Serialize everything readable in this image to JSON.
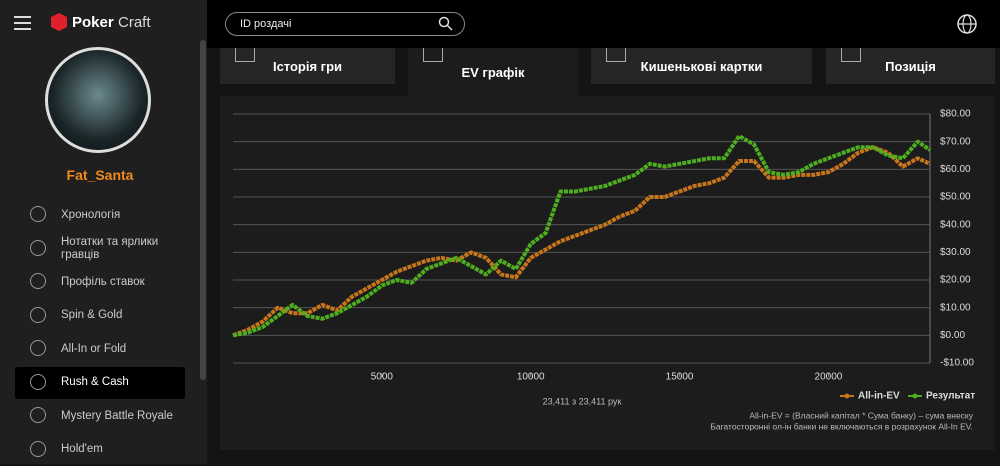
{
  "brand": {
    "left": "Poker",
    "right": "Craft"
  },
  "search": {
    "placeholder": "ID роздачі"
  },
  "user": {
    "name": "Fat_Santa"
  },
  "nav": [
    "Хронологія",
    "Нотатки та ярлики гравців",
    "Профіль ставок",
    "Spin & Gold",
    "All-In or Fold",
    "Rush & Cash",
    "Mystery Battle Royale",
    "Hold'em"
  ],
  "nav_active": 5,
  "tabs": [
    "Історія гри",
    "EV графік",
    "Кишенькові картки",
    "Позиція"
  ],
  "tab_active": 1,
  "hands": "23,411 з 23,411 рук",
  "notes": [
    "All-in-EV = (Власний капітал * Сума банку) – сума внеску",
    "Багатосторонні ол-ін банки не включаються в розрахунок All-In EV."
  ],
  "chart_data": {
    "type": "line",
    "x": [
      0,
      500,
      1000,
      1500,
      2000,
      2500,
      3000,
      3500,
      4000,
      4500,
      5000,
      5500,
      6000,
      6500,
      7000,
      7500,
      8000,
      8500,
      9000,
      9500,
      10000,
      10500,
      11000,
      11500,
      12000,
      12500,
      13000,
      13500,
      14000,
      14500,
      15000,
      15500,
      16000,
      16500,
      17000,
      17500,
      18000,
      18500,
      19000,
      19500,
      20000,
      20500,
      21000,
      21500,
      22000,
      22500,
      23000,
      23411
    ],
    "series": [
      {
        "name": "All-in-EV",
        "color": "#c8761b",
        "values": [
          0,
          2,
          5,
          10,
          8,
          8,
          11,
          9,
          14,
          17,
          20,
          23,
          25,
          27,
          28,
          27,
          30,
          28,
          22,
          21,
          28,
          31,
          34,
          36,
          38,
          40,
          43,
          45,
          50,
          50,
          52,
          54,
          55,
          57,
          63,
          63,
          57,
          57,
          58,
          58,
          59,
          62,
          66,
          68,
          66,
          61,
          64,
          62
        ]
      },
      {
        "name": "Результат",
        "color": "#4fae1f",
        "values": [
          0,
          1,
          3,
          7,
          11,
          7,
          6,
          8,
          11,
          14,
          18,
          20,
          19,
          24,
          26,
          28,
          25,
          22,
          27,
          24,
          33,
          37,
          52,
          52,
          53,
          54,
          56,
          58,
          62,
          61,
          62,
          63,
          64,
          64,
          72,
          69,
          59,
          58,
          59,
          62,
          64,
          66,
          68,
          68,
          65,
          64,
          70,
          67
        ]
      }
    ],
    "xlim": [
      0,
      23411
    ],
    "xticks": [
      5000,
      10000,
      15000,
      20000
    ],
    "ylim": [
      -10,
      80
    ],
    "yticks": [
      {
        "value": -10,
        "label": "-$10.00"
      },
      {
        "value": 0,
        "label": "$0.00"
      },
      {
        "value": 10,
        "label": "$10.00"
      },
      {
        "value": 20,
        "label": "$20.00"
      },
      {
        "value": 30,
        "label": "$30.00"
      },
      {
        "value": 40,
        "label": "$40.00"
      },
      {
        "value": 50,
        "label": "$50.00"
      },
      {
        "value": 60,
        "label": "$60.00"
      },
      {
        "value": 70,
        "label": "$70.00"
      },
      {
        "value": 80,
        "label": "$80.00"
      }
    ],
    "grid": true,
    "legend": "bottom-right"
  }
}
